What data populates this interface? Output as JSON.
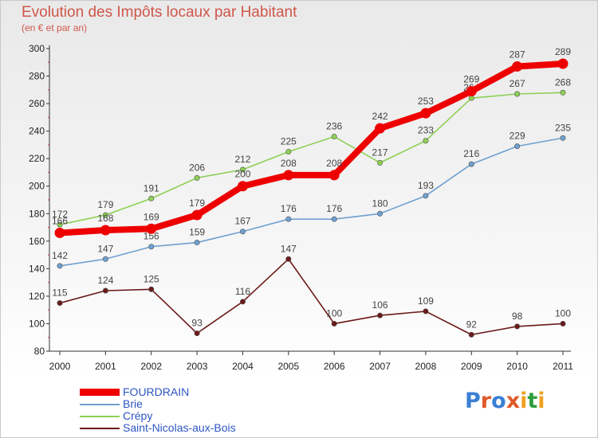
{
  "header": {
    "title": "Evolution des Impôts locaux par Habitant",
    "subtitle": "(en € et par an)"
  },
  "brand": {
    "text": "Proxiti",
    "letter_colors": [
      "#3a7fd5",
      "#e05a2a",
      "#3a7fd5",
      "#e05a2a",
      "#f0a020",
      "#2e9e3e",
      "#f0a020"
    ]
  },
  "chart_data": {
    "type": "line",
    "title": "Evolution des Impôts locaux par Habitant",
    "subtitle": "(en € et par an)",
    "xlabel": "",
    "ylabel": "",
    "ylim": [
      80,
      300
    ],
    "yticks": [
      80,
      100,
      120,
      140,
      160,
      180,
      200,
      220,
      240,
      260,
      280,
      300
    ],
    "grid": false,
    "legend_position": "bottom-left",
    "x": [
      2000,
      2001,
      2002,
      2003,
      2004,
      2005,
      2006,
      2007,
      2008,
      2009,
      2010,
      2011
    ],
    "series": [
      {
        "name": "Saint-Nicolas-aux-Bois",
        "color": "#6b1a1a",
        "emphasis": false,
        "values": [
          115,
          124,
          125,
          93,
          116,
          147,
          100,
          106,
          109,
          92,
          98,
          100
        ]
      },
      {
        "name": "Brie",
        "color": "#6fa0d0",
        "emphasis": false,
        "values": [
          142,
          147,
          156,
          159,
          167,
          176,
          176,
          180,
          193,
          216,
          229,
          235
        ]
      },
      {
        "name": "Crépy",
        "color": "#8ed055",
        "emphasis": false,
        "values": [
          172,
          179,
          191,
          206,
          212,
          225,
          236,
          217,
          233,
          264,
          267,
          268
        ]
      },
      {
        "name": "FOURDRAIN",
        "color": "#ee0000",
        "emphasis": true,
        "values": [
          166,
          168,
          169,
          179,
          200,
          208,
          208,
          242,
          253,
          269,
          287,
          289
        ]
      }
    ]
  },
  "legend": {
    "items": [
      {
        "name": "FOURDRAIN",
        "color": "#ee0000",
        "thickness": 9
      },
      {
        "name": "Brie",
        "color": "#6fa0d0",
        "thickness": 2
      },
      {
        "name": "Crépy",
        "color": "#8ed055",
        "thickness": 2
      },
      {
        "name": "Saint-Nicolas-aux-Bois",
        "color": "#6b1a1a",
        "thickness": 2
      }
    ]
  }
}
